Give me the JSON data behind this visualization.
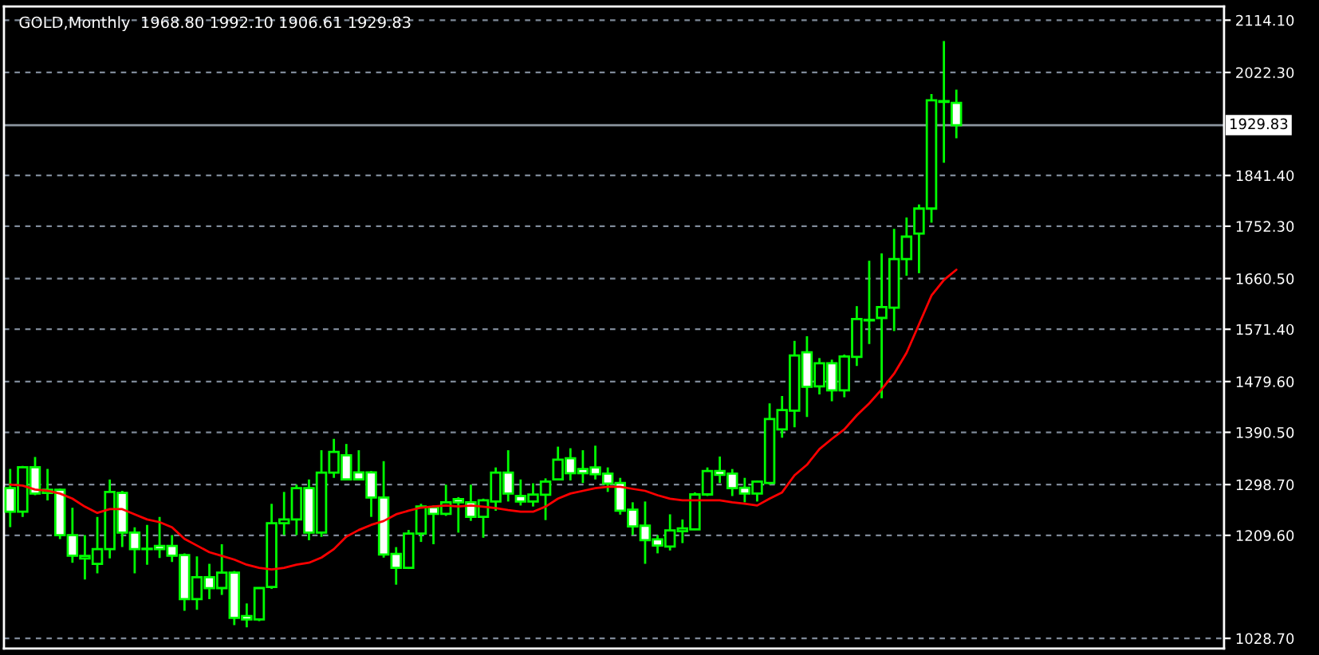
{
  "chart_data": {
    "type": "candlestick",
    "title": "GOLD,Monthly  1968.80 1992.10 1906.61 1929.83",
    "color": "#00ff00",
    "categories": [
      null,
      null,
      null,
      null,
      null,
      null,
      null,
      null,
      null,
      null,
      null,
      null,
      null,
      null,
      null,
      null,
      null,
      null,
      null,
      null,
      null,
      null,
      null,
      null,
      null,
      null,
      null,
      null,
      null,
      null,
      null,
      null,
      null,
      null,
      null,
      null,
      null,
      null,
      null,
      null,
      null,
      null,
      null,
      null,
      null,
      null,
      null,
      null,
      null,
      null,
      null,
      null,
      null,
      null,
      null,
      null,
      null,
      null,
      null,
      null,
      null,
      null,
      null,
      null,
      null,
      null,
      null,
      null,
      null,
      null,
      null,
      null,
      null,
      null,
      null,
      null,
      null,
      null,
      null,
      null,
      null,
      null,
      null,
      null,
      null,
      null,
      null,
      null,
      null,
      null,
      null,
      null,
      null,
      null,
      null,
      null,
      null,
      null
    ],
    "ohlc": [
      [
        1292.3,
        1326,
        1224,
        1251.2
      ],
      [
        1251.2,
        1331.5,
        1242,
        1329
      ],
      [
        1329,
        1347,
        1280,
        1283
      ],
      [
        1284,
        1326,
        1271,
        1289.5
      ],
      [
        1289.5,
        1292,
        1203,
        1210
      ],
      [
        1210,
        1258,
        1161.5,
        1174
      ],
      [
        1169,
        1210,
        1132,
        1173.5
      ],
      [
        1159.6,
        1242,
        1143,
        1185.4
      ],
      [
        1185.4,
        1307.7,
        1169,
        1285.8
      ],
      [
        1284,
        1287.7,
        1189,
        1214.4
      ],
      [
        1214.4,
        1223.8,
        1143,
        1185.4
      ],
      [
        1185.4,
        1228,
        1158,
        1186
      ],
      [
        1191,
        1242,
        1170,
        1185.4
      ],
      [
        1191,
        1210,
        1163,
        1174
      ],
      [
        1175,
        1178,
        1077,
        1097.6
      ],
      [
        1097.6,
        1172.5,
        1079,
        1136
      ],
      [
        1136,
        1159.6,
        1097.6,
        1116.8
      ],
      [
        1117,
        1194,
        1105,
        1144
      ],
      [
        1144,
        1147,
        1052,
        1064.7
      ],
      [
        1068,
        1090,
        1048,
        1062
      ],
      [
        1062,
        1118.5,
        1059,
        1117
      ],
      [
        1119,
        1264.9,
        1115.7,
        1230.9
      ],
      [
        1231,
        1285.8,
        1210,
        1237.5
      ],
      [
        1237.5,
        1298.6,
        1210,
        1292.3
      ],
      [
        1292.3,
        1307.7,
        1201,
        1214.4
      ],
      [
        1214.4,
        1359,
        1207,
        1319.8
      ],
      [
        1319.8,
        1379,
        1310.5,
        1356.2
      ],
      [
        1350,
        1370,
        1306,
        1307.7
      ],
      [
        1320,
        1359,
        1306,
        1307.7
      ],
      [
        1320,
        1322.5,
        1242,
        1275.9
      ],
      [
        1276,
        1339.8,
        1170.5,
        1176
      ],
      [
        1177,
        1188.9,
        1123,
        1152.4
      ],
      [
        1152.4,
        1219,
        1150.5,
        1212.8
      ],
      [
        1212.8,
        1265,
        1198,
        1260.2
      ],
      [
        1259,
        1262,
        1194,
        1247.4
      ],
      [
        1247.4,
        1298.6,
        1243.8,
        1267.6
      ],
      [
        1273,
        1276.7,
        1214.4,
        1267.6
      ],
      [
        1267.6,
        1298.6,
        1235,
        1242
      ],
      [
        1242,
        1274,
        1205.4,
        1271.2
      ],
      [
        1269,
        1328.8,
        1252.8,
        1319.8
      ],
      [
        1319.8,
        1359,
        1269,
        1283
      ],
      [
        1278.6,
        1307.7,
        1262,
        1269
      ],
      [
        1269,
        1301,
        1260.2,
        1281.3
      ],
      [
        1281,
        1309.6,
        1236.4,
        1304.1
      ],
      [
        1307.7,
        1365.3,
        1306,
        1342.5
      ],
      [
        1345,
        1362.5,
        1306,
        1318.8
      ],
      [
        1326,
        1359,
        1301.4,
        1318.8
      ],
      [
        1328.8,
        1367,
        1307.7,
        1317
      ],
      [
        1317.8,
        1328.8,
        1285.8,
        1300.5
      ],
      [
        1301.4,
        1310.5,
        1246,
        1252.8
      ],
      [
        1254.8,
        1267.6,
        1210,
        1225.4
      ],
      [
        1226.5,
        1269,
        1159.6,
        1201
      ],
      [
        1202.6,
        1210,
        1178,
        1191.7
      ],
      [
        1189.8,
        1246.5,
        1183,
        1218.3
      ],
      [
        1217,
        1237.5,
        1196,
        1221.8
      ],
      [
        1220,
        1285,
        1219,
        1281.4
      ],
      [
        1281.4,
        1328.8,
        1278.6,
        1322.5
      ],
      [
        1322.5,
        1348,
        1301.4,
        1316
      ],
      [
        1317.8,
        1326,
        1278.6,
        1292.3
      ],
      [
        1293.2,
        1310.5,
        1267.6,
        1283
      ],
      [
        1283,
        1306,
        1269,
        1304.1
      ],
      [
        1301.4,
        1441.3,
        1298.6,
        1413.8
      ],
      [
        1395.5,
        1454.2,
        1381,
        1429.5
      ],
      [
        1428.4,
        1551,
        1399.3,
        1525.5
      ],
      [
        1531,
        1559.2,
        1417.4,
        1470.6
      ],
      [
        1471,
        1520.8,
        1457,
        1511.8
      ],
      [
        1511.8,
        1518,
        1445,
        1464
      ],
      [
        1464,
        1527,
        1452,
        1523.6
      ],
      [
        1523,
        1612,
        1507,
        1589.4
      ],
      [
        1587,
        1691.7,
        1545.5,
        1588
      ],
      [
        1591.3,
        1704.6,
        1450.3,
        1610.5
      ],
      [
        1609.4,
        1747.7,
        1568.3,
        1694.5
      ],
      [
        1694.5,
        1767.7,
        1665.4,
        1734
      ],
      [
        1739.4,
        1790.5,
        1669.8,
        1783.3
      ],
      [
        1783.3,
        1984.4,
        1758.6,
        1973.4
      ],
      [
        1972,
        2077.6,
        1863.7,
        1970.7
      ],
      [
        1968.8,
        1992.1,
        1906.61,
        1929.83
      ],
      null,
      null,
      null,
      null,
      null,
      null,
      null,
      null,
      null,
      null,
      null,
      null,
      null,
      null,
      null,
      null,
      null,
      null,
      null,
      null,
      null
    ],
    "series": [
      {
        "type": "line",
        "color": "#ff0000",
        "values": [
          1298.6,
          1297,
          1290,
          1288,
          1283,
          1274,
          1260,
          1249,
          1255.6,
          1255.6,
          1246.5,
          1237.5,
          1232.8,
          1223.8,
          1203.5,
          1191.7,
          1180,
          1173.5,
          1167,
          1158,
          1152.4,
          1149.7,
          1152.4,
          1158,
          1161.5,
          1170.5,
          1185.4,
          1207.3,
          1219,
          1228,
          1234.7,
          1246.5,
          1252.8,
          1258.3,
          1260.2,
          1262,
          1260.2,
          1262,
          1260,
          1257.5,
          1254,
          1251,
          1251,
          1260,
          1274,
          1283,
          1287.7,
          1292.3,
          1295,
          1295,
          1291.2,
          1287.7,
          1280,
          1274,
          1271.2,
          1271.2,
          1271.2,
          1271.2,
          1267.6,
          1265,
          1262,
          1274,
          1285,
          1315,
          1333.5,
          1361,
          1379,
          1395.5,
          1420.2,
          1441.3,
          1466,
          1493.4,
          1530,
          1580,
          1630.5,
          1658,
          1676,
          null,
          null,
          null,
          null,
          null,
          null,
          null,
          null,
          null,
          null,
          null,
          null,
          null,
          null,
          null,
          null,
          null,
          null,
          null,
          null,
          null
        ]
      }
    ],
    "ylim": [
      1011,
      2138
    ],
    "yticks": [
      {
        "value": 2114.1,
        "label": "2114.10"
      },
      {
        "value": 2022.3,
        "label": "2022.30"
      },
      {
        "value": 1841.4,
        "label": "1841.40"
      },
      {
        "value": 1752.3,
        "label": "1752.30"
      },
      {
        "value": 1660.5,
        "label": "1660.50"
      },
      {
        "value": 1571.4,
        "label": "1571.40"
      },
      {
        "value": 1479.6,
        "label": "1479.60"
      },
      {
        "value": 1390.5,
        "label": "1390.50"
      },
      {
        "value": 1298.7,
        "label": "1298.70"
      },
      {
        "value": 1209.6,
        "label": "1209.60"
      },
      {
        "value": 1028.7,
        "label": "1028.70"
      }
    ],
    "ref_lines": [
      {
        "axis": "y",
        "value": 1929.83,
        "label": "1929.83",
        "color": "#8c96a0"
      }
    ],
    "grid": "y",
    "legend": false
  }
}
